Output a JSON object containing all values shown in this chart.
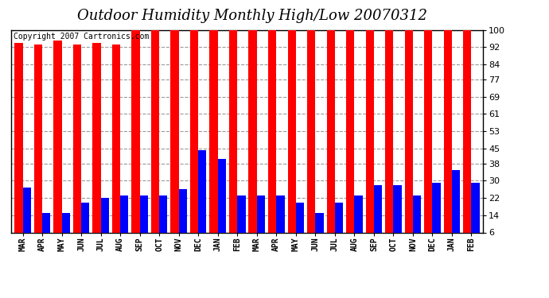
{
  "title": "Outdoor Humidity Monthly High/Low 20070312",
  "copyright_text": "Copyright 2007 Cartronics.com",
  "categories": [
    "MAR",
    "APR",
    "MAY",
    "JUN",
    "JUL",
    "AUG",
    "SEP",
    "OCT",
    "NOV",
    "DEC",
    "JAN",
    "FEB",
    "MAR",
    "APR",
    "MAY",
    "JUN",
    "JUL",
    "AUG",
    "SEP",
    "OCT",
    "NOV",
    "DEC",
    "JAN",
    "FEB"
  ],
  "high_values": [
    94,
    93,
    95,
    93,
    94,
    93,
    100,
    100,
    100,
    100,
    100,
    100,
    100,
    100,
    100,
    100,
    100,
    100,
    100,
    100,
    100,
    100,
    100,
    100
  ],
  "low_values": [
    27,
    15,
    15,
    20,
    22,
    23,
    23,
    23,
    26,
    44,
    40,
    23,
    23,
    23,
    20,
    15,
    20,
    23,
    28,
    28,
    23,
    29,
    35,
    29
  ],
  "bar_width": 0.42,
  "high_color": "#ff0000",
  "low_color": "#0000ff",
  "bg_color": "#ffffff",
  "plot_bg_color": "#ffffff",
  "grid_color": "#999999",
  "yticks": [
    6,
    14,
    22,
    30,
    38,
    45,
    53,
    61,
    69,
    77,
    84,
    92,
    100
  ],
  "ylim": [
    6,
    100
  ],
  "ymin": 6,
  "title_fontsize": 13,
  "copyright_fontsize": 7,
  "tick_fontsize": 8,
  "xtick_fontsize": 7
}
